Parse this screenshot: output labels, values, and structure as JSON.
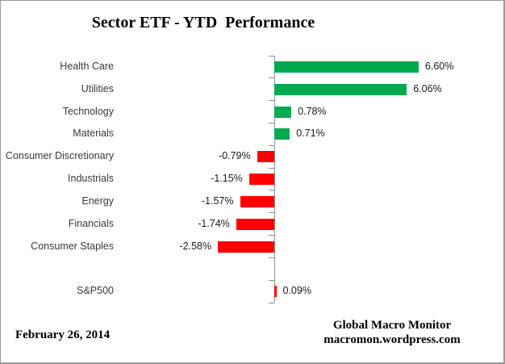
{
  "title": "Sector ETF - YTD  Performance",
  "footer": {
    "date": "February 26, 2014",
    "brand_line1": "Global Macro Monitor",
    "brand_line2": "macromon.wordpress.com"
  },
  "colors": {
    "positive_bar": "#00AB50",
    "negative_bar": "#FF0000",
    "axis": "#909090",
    "frame_border": "#9A9A9A",
    "category_text": "#3A3A3A",
    "value_text": "#1A1A1A",
    "title_text": "#000000"
  },
  "chart_data": {
    "type": "bar",
    "orientation": "horizontal",
    "title": "Sector ETF - YTD  Performance",
    "value_unit": "percent",
    "grid": false,
    "legend": false,
    "xlabel": "",
    "ylabel": "",
    "categories": [
      "Health Care",
      "Utilities",
      "Technology",
      "Materials",
      "Consumer Discretionary",
      "Industrials",
      "Energy",
      "Financials",
      "Consumer Staples",
      "S&P500"
    ],
    "values": [
      6.6,
      6.06,
      0.78,
      0.71,
      -0.79,
      -1.15,
      -1.57,
      -1.74,
      -2.58,
      0.09
    ],
    "rows": [
      {
        "category": "Health Care",
        "value": 6.6,
        "label": "6.60%",
        "color": "#00AB50"
      },
      {
        "category": "Utilities",
        "value": 6.06,
        "label": "6.06%",
        "color": "#00AB50"
      },
      {
        "category": "Technology",
        "value": 0.78,
        "label": "0.78%",
        "color": "#00AB50"
      },
      {
        "category": "Materials",
        "value": 0.71,
        "label": "0.71%",
        "color": "#00AB50"
      },
      {
        "category": "Consumer Discretionary",
        "value": -0.79,
        "label": "-0.79%",
        "color": "#FF0000"
      },
      {
        "category": "Industrials",
        "value": -1.15,
        "label": "-1.15%",
        "color": "#FF0000"
      },
      {
        "category": "Energy",
        "value": -1.57,
        "label": "-1.57%",
        "color": "#FF0000"
      },
      {
        "category": "Financials",
        "value": -1.74,
        "label": "-1.74%",
        "color": "#FF0000"
      },
      {
        "category": "Consumer Staples",
        "value": -2.58,
        "label": "-2.58%",
        "color": "#FF0000"
      },
      {
        "gap": true
      },
      {
        "category": "S&P500",
        "value": 0.09,
        "label": "0.09%",
        "color": "#FF0000"
      }
    ]
  }
}
